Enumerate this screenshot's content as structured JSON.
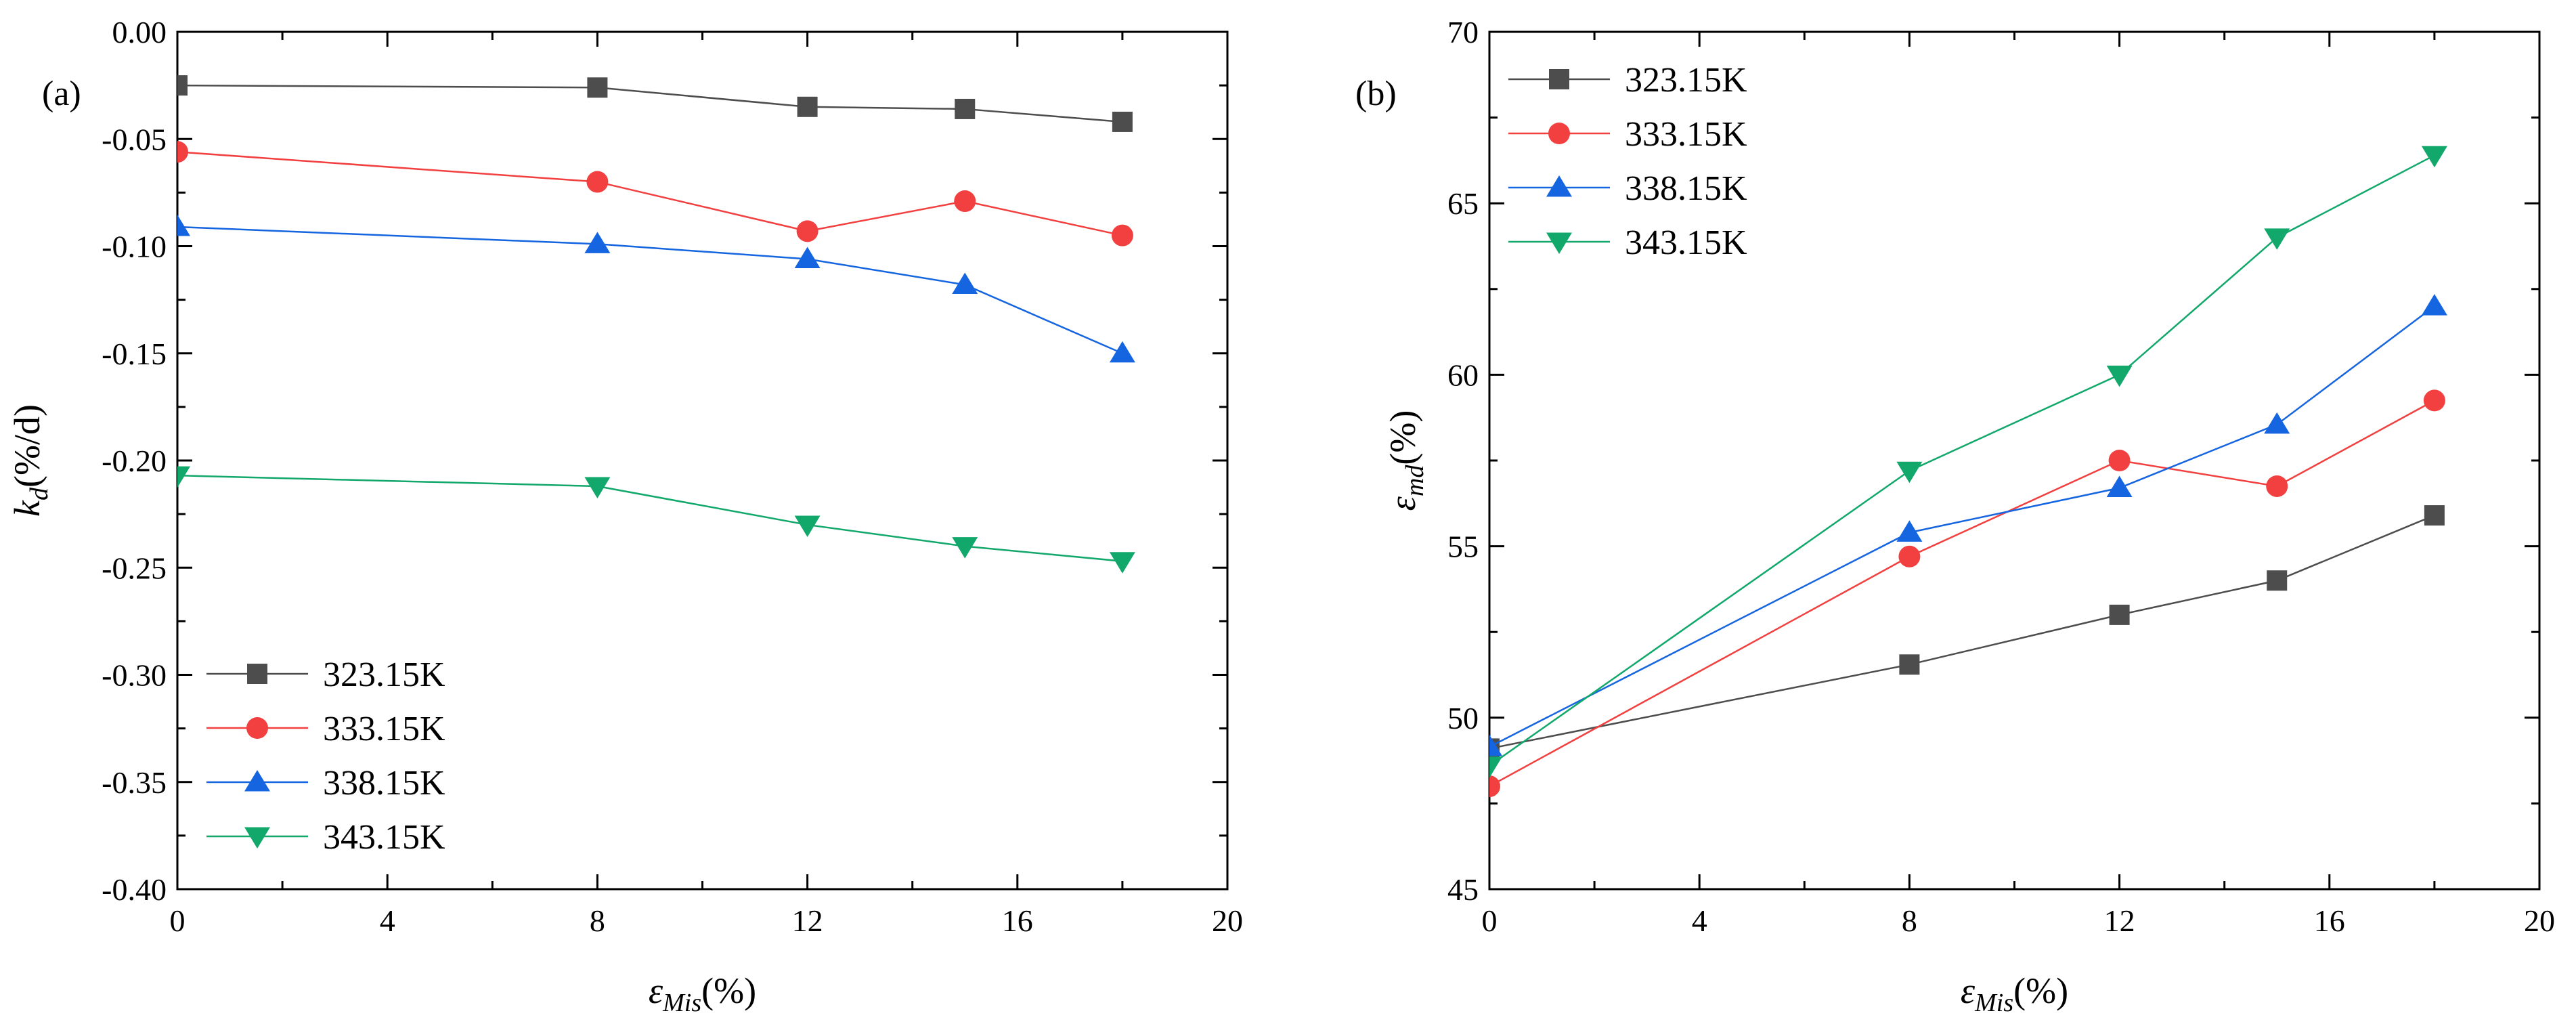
{
  "chart_data": [
    {
      "type": "line",
      "panel_label": "(a)",
      "xlabel": {
        "main": "ε",
        "sub": "Mis",
        "unit": "(%)"
      },
      "ylabel": {
        "main": "k",
        "sub": "d",
        "unit": "(%/d)"
      },
      "xlim": [
        0,
        20
      ],
      "ylim": [
        -0.4,
        0.0
      ],
      "xticks": [
        0,
        4,
        8,
        12,
        16,
        20
      ],
      "xtick_labels": [
        "0",
        "4",
        "8",
        "12",
        "16",
        "20"
      ],
      "yticks": [
        0.0,
        -0.05,
        -0.1,
        -0.15,
        -0.2,
        -0.25,
        -0.3,
        -0.35,
        -0.4
      ],
      "ytick_labels": [
        "0.00",
        "-0.05",
        "-0.10",
        "-0.15",
        "-0.20",
        "-0.25",
        "-0.30",
        "-0.35",
        "-0.40"
      ],
      "legend_position": "bottom-left",
      "x": [
        0,
        8,
        12,
        15,
        18
      ],
      "series": [
        {
          "name": "323.15K",
          "marker": "square",
          "color": "#4d4d4d",
          "values": [
            -0.025,
            -0.026,
            -0.035,
            -0.036,
            -0.042
          ]
        },
        {
          "name": "333.15K",
          "marker": "circle",
          "color": "#f23f3f",
          "values": [
            -0.056,
            -0.07,
            -0.093,
            -0.079,
            -0.095
          ]
        },
        {
          "name": "338.15K",
          "marker": "triangle-up",
          "color": "#1565e0",
          "values": [
            -0.091,
            -0.099,
            -0.106,
            -0.118,
            -0.15
          ]
        },
        {
          "name": "343.15K",
          "marker": "triangle-down",
          "color": "#12a86b",
          "values": [
            -0.207,
            -0.212,
            -0.23,
            -0.24,
            -0.247
          ]
        }
      ]
    },
    {
      "type": "line",
      "panel_label": "(b)",
      "xlabel": {
        "main": "ε",
        "sub": "Mis",
        "unit": "(%)"
      },
      "ylabel": {
        "main": "ε",
        "sub": "md",
        "unit": "(%)"
      },
      "xlim": [
        0,
        20
      ],
      "ylim": [
        45,
        70
      ],
      "xticks": [
        0,
        4,
        8,
        12,
        16,
        20
      ],
      "xtick_labels": [
        "0",
        "4",
        "8",
        "12",
        "16",
        "20"
      ],
      "yticks": [
        45,
        50,
        55,
        60,
        65,
        70
      ],
      "ytick_labels": [
        "45",
        "50",
        "55",
        "60",
        "65",
        "70"
      ],
      "legend_position": "top-left",
      "x": [
        0,
        8,
        12,
        15,
        18
      ],
      "series": [
        {
          "name": "323.15K",
          "marker": "square",
          "color": "#4d4d4d",
          "values": [
            49.1,
            51.55,
            53.0,
            54.0,
            55.9
          ]
        },
        {
          "name": "333.15K",
          "marker": "circle",
          "color": "#f23f3f",
          "values": [
            48.0,
            54.7,
            57.5,
            56.75,
            59.25
          ]
        },
        {
          "name": "338.15K",
          "marker": "triangle-up",
          "color": "#1565e0",
          "values": [
            49.15,
            55.4,
            56.7,
            58.55,
            62.0
          ]
        },
        {
          "name": "343.15K",
          "marker": "triangle-down",
          "color": "#12a86b",
          "values": [
            48.6,
            57.2,
            60.0,
            64.0,
            66.4
          ]
        }
      ]
    }
  ]
}
